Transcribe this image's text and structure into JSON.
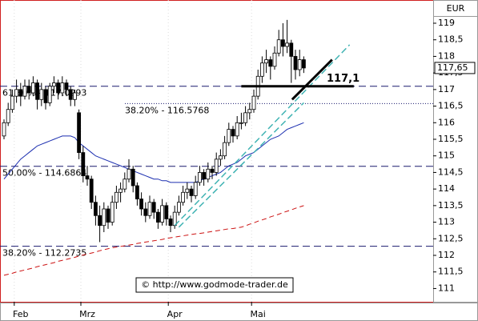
{
  "chart_data": {
    "type": "candlestick",
    "currency": "EUR",
    "categories": [
      null,
      null,
      null,
      null,
      "Feb",
      null,
      null,
      null,
      null,
      null,
      null,
      null,
      null,
      null,
      null,
      null,
      null,
      null,
      null,
      null,
      "Mrz",
      null,
      null,
      null,
      null,
      null,
      null,
      null,
      null,
      null,
      null,
      null,
      null,
      null,
      null,
      null,
      null,
      null,
      null,
      null,
      null,
      "Apr",
      null,
      null,
      null,
      null,
      null,
      null,
      null,
      null,
      null,
      null,
      null,
      null,
      null,
      null,
      null,
      null,
      null,
      null,
      null,
      "Mai",
      null,
      null,
      null,
      null,
      null,
      null,
      null,
      null,
      null,
      null,
      null
    ],
    "ohlc": [
      [
        115.6,
        116.1,
        115.5,
        116.0
      ],
      [
        116.0,
        116.6,
        115.9,
        116.4
      ],
      [
        116.4,
        117.0,
        116.3,
        116.8
      ],
      [
        116.8,
        117.3,
        116.6,
        117.0
      ],
      [
        117.0,
        117.2,
        116.5,
        116.8
      ],
      [
        116.8,
        117.3,
        116.7,
        117.1
      ],
      [
        117.1,
        117.3,
        116.7,
        116.9
      ],
      [
        116.9,
        117.4,
        116.8,
        117.2
      ],
      [
        117.2,
        117.3,
        116.4,
        116.7
      ],
      [
        116.7,
        117.2,
        116.5,
        117.0
      ],
      [
        117.0,
        117.1,
        116.4,
        116.6
      ],
      [
        116.6,
        117.2,
        116.5,
        117.1
      ],
      [
        117.1,
        117.4,
        116.9,
        117.2
      ],
      [
        117.2,
        117.3,
        116.7,
        116.9
      ],
      [
        116.9,
        117.4,
        116.8,
        117.2
      ],
      [
        117.2,
        117.3,
        116.8,
        117.0
      ],
      [
        117.0,
        117.1,
        116.5,
        116.7
      ],
      [
        116.7,
        117.0,
        116.5,
        116.9
      ],
      [
        116.3,
        116.4,
        114.9,
        115.1
      ],
      [
        115.1,
        115.3,
        114.2,
        114.4
      ],
      [
        114.4,
        114.7,
        114.1,
        114.3
      ],
      [
        114.3,
        114.4,
        113.4,
        113.6
      ],
      [
        113.6,
        113.8,
        112.9,
        113.2
      ],
      [
        113.2,
        113.5,
        112.4,
        112.9
      ],
      [
        112.9,
        113.6,
        112.7,
        113.4
      ],
      [
        113.4,
        113.5,
        112.8,
        113.0
      ],
      [
        113.0,
        113.8,
        112.9,
        113.6
      ],
      [
        113.6,
        114.1,
        113.4,
        113.9
      ],
      [
        113.9,
        114.2,
        113.6,
        114.0
      ],
      [
        114.0,
        114.5,
        113.9,
        114.3
      ],
      [
        114.3,
        114.9,
        114.2,
        114.6
      ],
      [
        114.6,
        114.7,
        113.9,
        114.1
      ],
      [
        114.1,
        114.2,
        113.5,
        113.7
      ],
      [
        113.7,
        113.9,
        113.2,
        113.4
      ],
      [
        113.4,
        113.6,
        113.0,
        113.2
      ],
      [
        113.2,
        113.8,
        113.1,
        113.6
      ],
      [
        113.6,
        113.7,
        113.1,
        113.3
      ],
      [
        113.3,
        113.4,
        112.8,
        113.0
      ],
      [
        113.0,
        113.7,
        112.9,
        113.5
      ],
      [
        113.5,
        113.6,
        112.9,
        113.1
      ],
      [
        113.1,
        113.2,
        112.7,
        112.9
      ],
      [
        112.9,
        113.5,
        112.8,
        113.3
      ],
      [
        113.3,
        113.8,
        113.2,
        113.6
      ],
      [
        113.6,
        114.1,
        113.5,
        113.9
      ],
      [
        113.9,
        114.2,
        113.7,
        114.0
      ],
      [
        114.0,
        114.1,
        113.6,
        113.8
      ],
      [
        113.8,
        114.4,
        113.7,
        114.2
      ],
      [
        114.2,
        114.7,
        114.1,
        114.5
      ],
      [
        114.5,
        114.6,
        114.1,
        114.3
      ],
      [
        114.3,
        114.8,
        114.2,
        114.6
      ],
      [
        114.6,
        114.7,
        114.3,
        114.5
      ],
      [
        114.5,
        115.1,
        114.4,
        114.9
      ],
      [
        114.9,
        115.2,
        114.7,
        115.0
      ],
      [
        115.0,
        115.6,
        114.9,
        115.4
      ],
      [
        115.4,
        116.0,
        115.3,
        115.8
      ],
      [
        115.8,
        115.9,
        115.4,
        115.6
      ],
      [
        115.6,
        116.2,
        115.5,
        116.0
      ],
      [
        116.0,
        116.3,
        115.8,
        116.0
      ],
      [
        116.0,
        116.5,
        115.9,
        116.3
      ],
      [
        116.3,
        116.6,
        116.1,
        116.4
      ],
      [
        116.4,
        117.0,
        116.3,
        116.8
      ],
      [
        116.8,
        117.6,
        116.7,
        117.4
      ],
      [
        117.4,
        118.0,
        117.2,
        117.8
      ],
      [
        117.8,
        118.2,
        117.5,
        117.9
      ],
      [
        117.9,
        118.0,
        117.3,
        117.7
      ],
      [
        117.7,
        118.3,
        117.6,
        118.1
      ],
      [
        118.1,
        118.8,
        118.0,
        118.5
      ],
      [
        118.5,
        119.0,
        118.0,
        118.3
      ],
      [
        118.3,
        119.1,
        118.1,
        118.4
      ],
      [
        118.4,
        118.5,
        117.2,
        118.0
      ],
      [
        118.0,
        118.2,
        117.3,
        117.6
      ],
      [
        117.6,
        118.2,
        117.4,
        117.9
      ],
      [
        117.9,
        118.0,
        117.5,
        117.65
      ]
    ],
    "up_color": "#ffffff",
    "down_color": "#000000",
    "series": [
      {
        "color": "#1c2fb0",
        "dash": false,
        "values": [
          114.3,
          114.45,
          114.6,
          114.75,
          114.9,
          115.0,
          115.1,
          115.2,
          115.3,
          115.35,
          115.4,
          115.45,
          115.5,
          115.55,
          115.6,
          115.6,
          115.6,
          115.55,
          115.4,
          115.3,
          115.2,
          115.1,
          115.0,
          114.95,
          114.9,
          114.85,
          114.8,
          114.75,
          114.7,
          114.65,
          114.6,
          114.55,
          114.5,
          114.45,
          114.4,
          114.35,
          114.3,
          114.3,
          114.25,
          114.25,
          114.2,
          114.2,
          114.2,
          114.2,
          114.2,
          114.2,
          114.2,
          114.25,
          114.3,
          114.35,
          114.4,
          114.45,
          114.5,
          114.6,
          114.7,
          114.75,
          114.8,
          114.9,
          115.0,
          115.05,
          115.1,
          115.2,
          115.3,
          115.4,
          115.5,
          115.55,
          115.6,
          115.7,
          115.8,
          115.85,
          115.9,
          115.95,
          116.0
        ]
      },
      {
        "color": "#cc1111",
        "dash": true,
        "values": [
          111.4,
          111.43,
          111.46,
          111.5,
          111.53,
          111.56,
          111.59,
          111.62,
          111.66,
          111.69,
          111.72,
          111.75,
          111.78,
          111.82,
          111.85,
          111.88,
          111.91,
          111.94,
          111.98,
          112.01,
          112.04,
          112.07,
          112.1,
          112.14,
          112.17,
          112.2,
          112.23,
          112.25,
          112.27,
          112.29,
          112.31,
          112.33,
          112.36,
          112.38,
          112.4,
          112.42,
          112.44,
          112.46,
          112.48,
          112.51,
          112.53,
          112.55,
          112.57,
          112.59,
          112.61,
          112.63,
          112.65,
          112.66,
          112.68,
          112.7,
          112.72,
          112.74,
          112.76,
          112.78,
          112.8,
          112.81,
          112.83,
          112.85,
          112.89,
          112.94,
          112.98,
          113.03,
          113.07,
          113.11,
          113.16,
          113.2,
          113.24,
          113.29,
          113.33,
          113.37,
          113.42,
          113.46,
          113.5
        ]
      }
    ],
    "levels": [
      {
        "value": 117.0993,
        "label": "61.80% - 117.0993",
        "style": "dashed",
        "x_start": 0
      },
      {
        "value": 116.5768,
        "label": "38.20% - 116.5768",
        "style": "dotted",
        "x_start": 30
      },
      {
        "value": 114.6864,
        "label": "50.00% - 114.6864",
        "style": "dashed",
        "x_start": 0
      },
      {
        "value": 112.2735,
        "label": "38.20% - 112.2735",
        "style": "dashed",
        "x_start": 0
      }
    ],
    "level_color": "#1a1a6e",
    "trendlines": [
      {
        "x": [
          41,
          83
        ],
        "values": [
          112.9,
          118.35
        ],
        "color": "#3fb3b3"
      },
      {
        "x": [
          42,
          72
        ],
        "values": [
          112.85,
          116.6
        ],
        "color": "#3fb3b3"
      },
      {
        "x": [
          69.2,
          78.8
        ],
        "values": [
          116.7,
          117.9
        ],
        "color": "#000000"
      }
    ],
    "marker": {
      "x": [
        57,
        84
      ],
      "value": 117.1,
      "label": "117,1"
    },
    "last_price": {
      "value": 117.65,
      "label": "117,65"
    },
    "ylim": [
      110.6,
      119.7
    ],
    "yticks": [
      111,
      {
        "value": 111.5,
        "label": "111,5"
      },
      112,
      {
        "value": 112.5,
        "label": "112,5"
      },
      113,
      {
        "value": 113.5,
        "label": "113,5"
      },
      114,
      {
        "value": 114.5,
        "label": "114,5"
      },
      115,
      {
        "value": 115.5,
        "label": "115,5"
      },
      116,
      {
        "value": 116.5,
        "label": "116,5"
      },
      117,
      {
        "value": 117.5,
        "label": "117,5"
      },
      118,
      {
        "value": 118.5,
        "label": "118,5"
      },
      119
    ],
    "copyright": "© http://www.godmode-trader.de"
  }
}
